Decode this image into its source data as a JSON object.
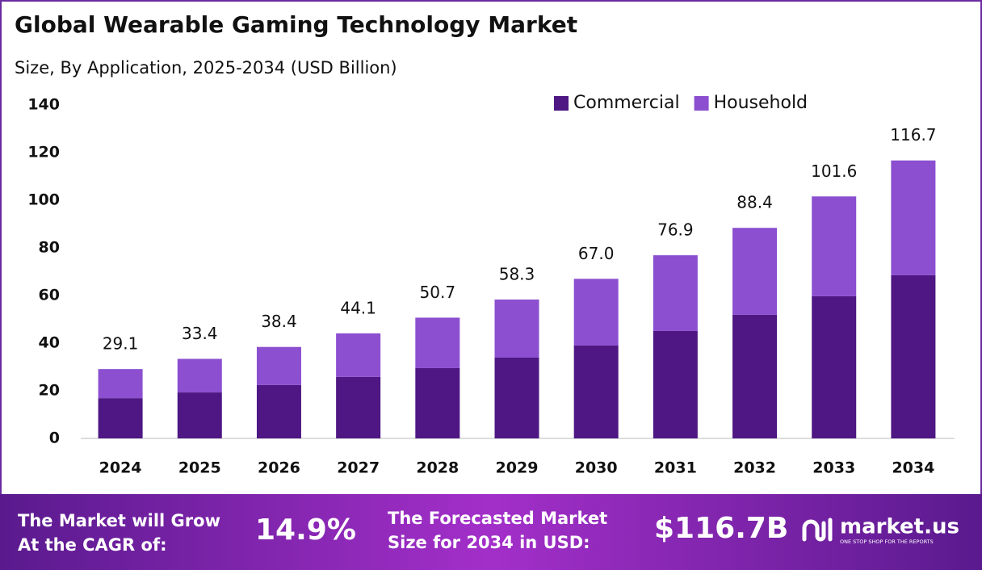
{
  "chart_data": {
    "type": "stacked_bar",
    "title": "Global Wearable Gaming Technology Market",
    "subtitle": "Size, By Application, 2025-2034 (USD Billion)",
    "categories": [
      "2024",
      "2025",
      "2026",
      "2027",
      "2028",
      "2029",
      "2030",
      "2031",
      "2032",
      "2033",
      "2034"
    ],
    "series": [
      {
        "name": "Commercial",
        "color": "#4e1783",
        "values": [
          16.9,
          19.3,
          22.4,
          25.8,
          29.5,
          33.9,
          39.0,
          45.1,
          51.9,
          59.7,
          68.5
        ]
      },
      {
        "name": "Household",
        "color": "#8b4fd0",
        "values": [
          12.2,
          14.1,
          16.0,
          18.3,
          21.2,
          24.4,
          28.0,
          31.8,
          36.5,
          41.9,
          48.2
        ]
      }
    ],
    "total_labels": [
      "29.1",
      "33.4",
      "38.4",
      "44.1",
      "50.7",
      "58.3",
      "67.0",
      "76.9",
      "88.4",
      "101.6",
      "116.7"
    ],
    "ylim": [
      0,
      140
    ],
    "yticks": [
      0,
      20,
      40,
      60,
      80,
      100,
      120,
      140
    ],
    "grid": false,
    "legend": "top-right"
  },
  "footer": {
    "cagr_label": [
      "The Market will Grow",
      "At the CAGR of:"
    ],
    "cagr_value": "14.9%",
    "forecast_label": [
      "The Forecasted Market",
      "Size for 2034 in USD:"
    ],
    "forecast_value": "$116.7B",
    "brand": "market.us",
    "tagline": "ONE STOP SHOP FOR THE REPORTS"
  }
}
